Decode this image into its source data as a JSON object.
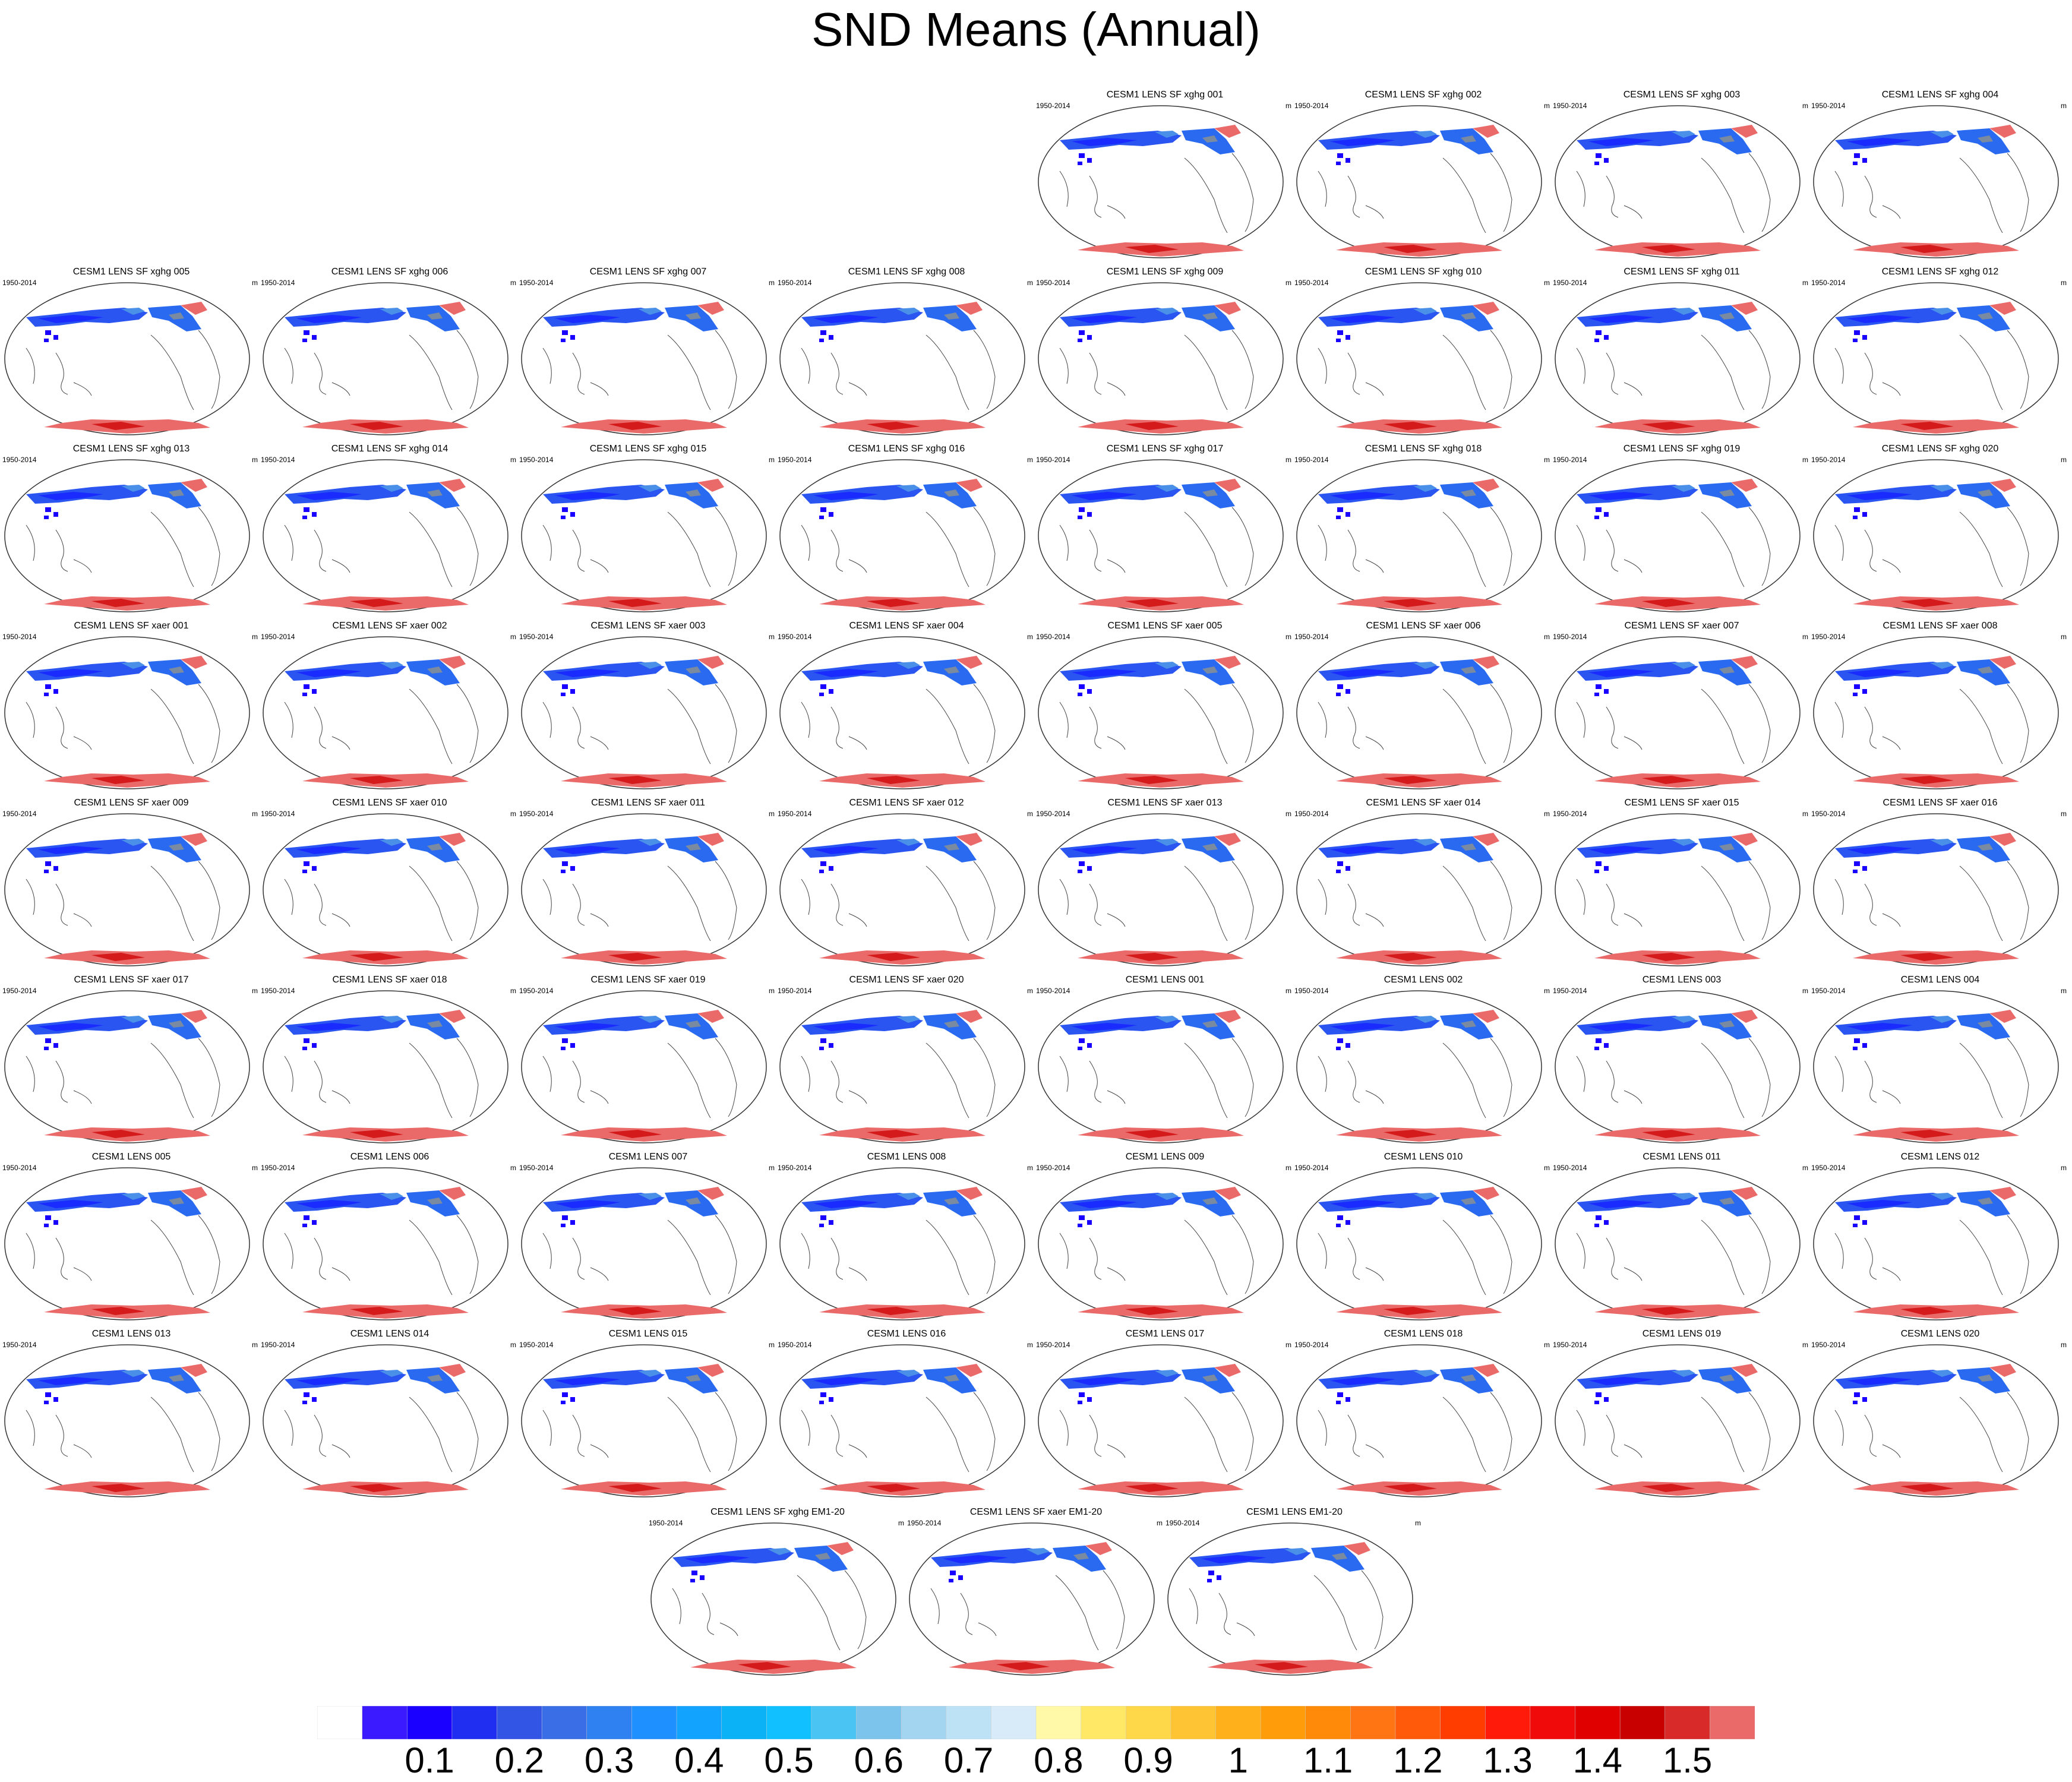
{
  "title": "SND Means (Annual)",
  "panel_common": {
    "left_label": "1950-2014",
    "right_label": "m"
  },
  "panels": [
    "CESM1 LENS SF xghg 001",
    "CESM1 LENS SF xghg 002",
    "CESM1 LENS SF xghg 003",
    "CESM1 LENS SF xghg 004",
    "CESM1 LENS SF xghg 005",
    "CESM1 LENS SF xghg 006",
    "CESM1 LENS SF xghg 007",
    "CESM1 LENS SF xghg 008",
    "CESM1 LENS SF xghg 009",
    "CESM1 LENS SF xghg 010",
    "CESM1 LENS SF xghg 011",
    "CESM1 LENS SF xghg 012",
    "CESM1 LENS SF xghg 013",
    "CESM1 LENS SF xghg 014",
    "CESM1 LENS SF xghg 015",
    "CESM1 LENS SF xghg 016",
    "CESM1 LENS SF xghg 017",
    "CESM1 LENS SF xghg 018",
    "CESM1 LENS SF xghg 019",
    "CESM1 LENS SF xghg 020",
    "CESM1 LENS SF xaer 001",
    "CESM1 LENS SF xaer 002",
    "CESM1 LENS SF xaer 003",
    "CESM1 LENS SF xaer 004",
    "CESM1 LENS SF xaer 005",
    "CESM1 LENS SF xaer 006",
    "CESM1 LENS SF xaer 007",
    "CESM1 LENS SF xaer 008",
    "CESM1 LENS SF xaer 009",
    "CESM1 LENS SF xaer 010",
    "CESM1 LENS SF xaer 011",
    "CESM1 LENS SF xaer 012",
    "CESM1 LENS SF xaer 013",
    "CESM1 LENS SF xaer 014",
    "CESM1 LENS SF xaer 015",
    "CESM1 LENS SF xaer 016",
    "CESM1 LENS SF xaer 017",
    "CESM1 LENS SF xaer 018",
    "CESM1 LENS SF xaer 019",
    "CESM1 LENS SF xaer 020",
    "CESM1 LENS 001",
    "CESM1 LENS 002",
    "CESM1 LENS 003",
    "CESM1 LENS 004",
    "CESM1 LENS 005",
    "CESM1 LENS 006",
    "CESM1 LENS 007",
    "CESM1 LENS 008",
    "CESM1 LENS 009",
    "CESM1 LENS 010",
    "CESM1 LENS 011",
    "CESM1 LENS 012",
    "CESM1 LENS 013",
    "CESM1 LENS 014",
    "CESM1 LENS 015",
    "CESM1 LENS 016",
    "CESM1 LENS 017",
    "CESM1 LENS 018",
    "CESM1 LENS 019",
    "CESM1 LENS 020",
    "CESM1 LENS SF xghg EM1-20",
    "CESM1 LENS SF xaer EM1-20",
    "CESM1 LENS EM1-20"
  ],
  "colorbar": {
    "colors": [
      "#ffffff",
      "#3b1aff",
      "#1a00ff",
      "#1f2ef0",
      "#3355e6",
      "#3a6ee6",
      "#2f80f0",
      "#1f90ff",
      "#12a3ff",
      "#0bb2f5",
      "#10c0ff",
      "#4ac4f2",
      "#7cc4ec",
      "#a3d4f0",
      "#bde1f5",
      "#d7ecf8",
      "#fff9a8",
      "#ffe866",
      "#ffd84a",
      "#ffc433",
      "#ffb01a",
      "#ff9c0a",
      "#ff8a0a",
      "#ff7514",
      "#ff5a0a",
      "#ff3d00",
      "#ff1a0a",
      "#f00a0a",
      "#e00000",
      "#c80000",
      "#d92a2a",
      "#ea6a6a"
    ],
    "labels": [
      "0.1",
      "0.2",
      "0.3",
      "0.4",
      "0.5",
      "0.6",
      "0.7",
      "0.8",
      "0.9",
      "1",
      "1.1",
      "1.2",
      "1.3",
      "1.4",
      "1.5"
    ]
  }
}
